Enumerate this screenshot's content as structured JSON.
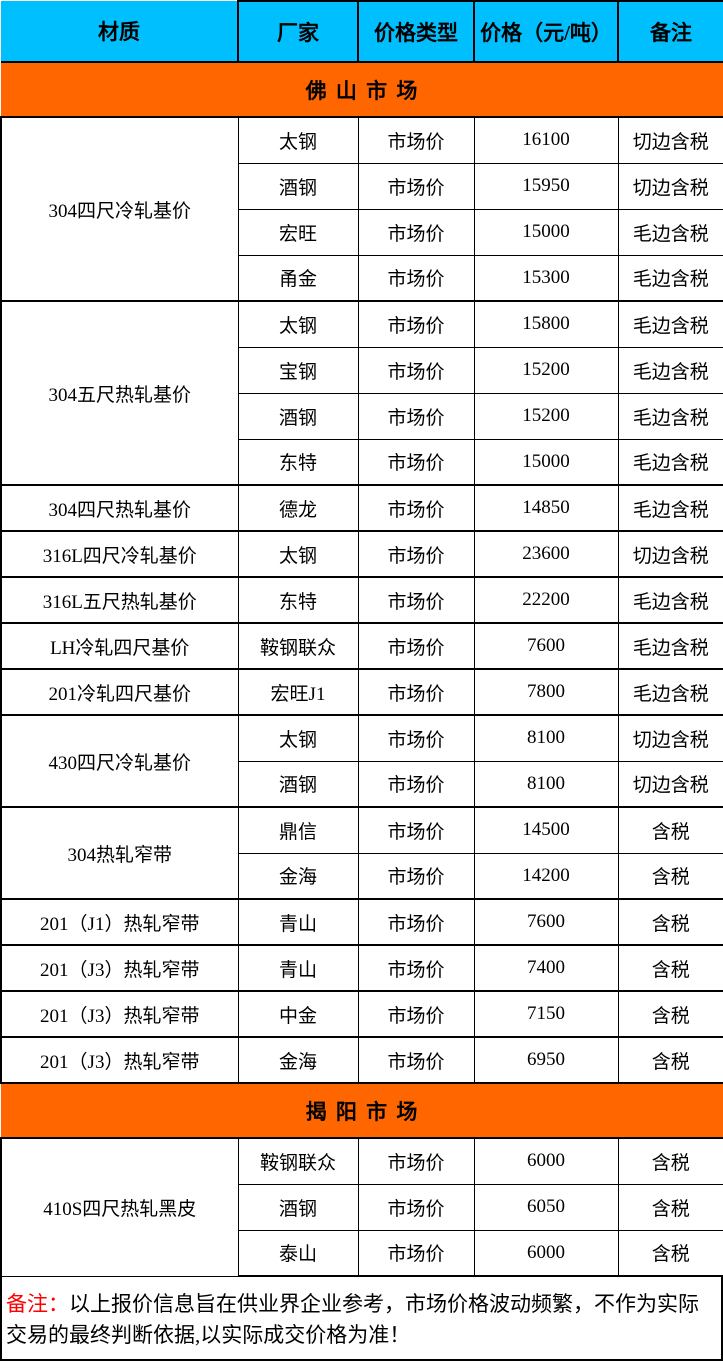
{
  "colors": {
    "header_bg": "#00BFFF",
    "band_bg": "#FF6600",
    "note_red": "#FF0000",
    "border": "#000000"
  },
  "header": {
    "columns": [
      "材质",
      "厂家",
      "价格类型",
      "价格（元/吨）",
      "备注"
    ]
  },
  "markets": [
    {
      "name": "佛 山 市 场",
      "groups": [
        {
          "material": "304四尺冷轧基价",
          "rows": [
            {
              "factory": "太钢",
              "price_type": "市场价",
              "price": "16100",
              "note": "切边含税"
            },
            {
              "factory": "酒钢",
              "price_type": "市场价",
              "price": "15950",
              "note": "切边含税"
            },
            {
              "factory": "宏旺",
              "price_type": "市场价",
              "price": "15000",
              "note": "毛边含税"
            },
            {
              "factory": "甬金",
              "price_type": "市场价",
              "price": "15300",
              "note": "毛边含税"
            }
          ]
        },
        {
          "material": "304五尺热轧基价",
          "rows": [
            {
              "factory": "太钢",
              "price_type": "市场价",
              "price": "15800",
              "note": "毛边含税"
            },
            {
              "factory": "宝钢",
              "price_type": "市场价",
              "price": "15200",
              "note": "毛边含税"
            },
            {
              "factory": "酒钢",
              "price_type": "市场价",
              "price": "15200",
              "note": "毛边含税"
            },
            {
              "factory": "东特",
              "price_type": "市场价",
              "price": "15000",
              "note": "毛边含税"
            }
          ]
        },
        {
          "material": "304四尺热轧基价",
          "rows": [
            {
              "factory": "德龙",
              "price_type": "市场价",
              "price": "14850",
              "note": "毛边含税"
            }
          ]
        },
        {
          "material": "316L四尺冷轧基价",
          "rows": [
            {
              "factory": "太钢",
              "price_type": "市场价",
              "price": "23600",
              "note": "切边含税"
            }
          ]
        },
        {
          "material": "316L五尺热轧基价",
          "rows": [
            {
              "factory": "东特",
              "price_type": "市场价",
              "price": "22200",
              "note": "毛边含税"
            }
          ]
        },
        {
          "material": "LH冷轧四尺基价",
          "rows": [
            {
              "factory": "鞍钢联众",
              "price_type": "市场价",
              "price": "7600",
              "note": "毛边含税"
            }
          ]
        },
        {
          "material": "201冷轧四尺基价",
          "rows": [
            {
              "factory": "宏旺J1",
              "price_type": "市场价",
              "price": "7800",
              "note": "毛边含税"
            }
          ]
        },
        {
          "material": "430四尺冷轧基价",
          "rows": [
            {
              "factory": "太钢",
              "price_type": "市场价",
              "price": "8100",
              "note": "切边含税"
            },
            {
              "factory": "酒钢",
              "price_type": "市场价",
              "price": "8100",
              "note": "切边含税"
            }
          ]
        },
        {
          "material": "304热轧窄带",
          "rows": [
            {
              "factory": "鼎信",
              "price_type": "市场价",
              "price": "14500",
              "note": "含税"
            },
            {
              "factory": "金海",
              "price_type": "市场价",
              "price": "14200",
              "note": "含税"
            }
          ]
        },
        {
          "material": "201（J1）热轧窄带",
          "rows": [
            {
              "factory": "青山",
              "price_type": "市场价",
              "price": "7600",
              "note": "含税"
            }
          ]
        },
        {
          "material": "201（J3）热轧窄带",
          "rows": [
            {
              "factory": "青山",
              "price_type": "市场价",
              "price": "7400",
              "note": "含税"
            }
          ]
        },
        {
          "material": "201（J3）热轧窄带",
          "rows": [
            {
              "factory": "中金",
              "price_type": "市场价",
              "price": "7150",
              "note": "含税"
            }
          ]
        },
        {
          "material": "201（J3）热轧窄带",
          "rows": [
            {
              "factory": "金海",
              "price_type": "市场价",
              "price": "6950",
              "note": "含税"
            }
          ]
        }
      ]
    },
    {
      "name": "揭 阳 市 场",
      "groups": [
        {
          "material": "410S四尺热轧黑皮",
          "rows": [
            {
              "factory": "鞍钢联众",
              "price_type": "市场价",
              "price": "6000",
              "note": "含税"
            },
            {
              "factory": "酒钢",
              "price_type": "市场价",
              "price": "6050",
              "note": "含税"
            },
            {
              "factory": "泰山",
              "price_type": "市场价",
              "price": "6000",
              "note": "含税"
            }
          ]
        }
      ]
    }
  ],
  "footer": {
    "label": "备注：",
    "text": "以上报价信息旨在供业界企业参考，市场价格波动频繁，不作为实际交易的最终判断依据,以实际成交价格为准！"
  }
}
